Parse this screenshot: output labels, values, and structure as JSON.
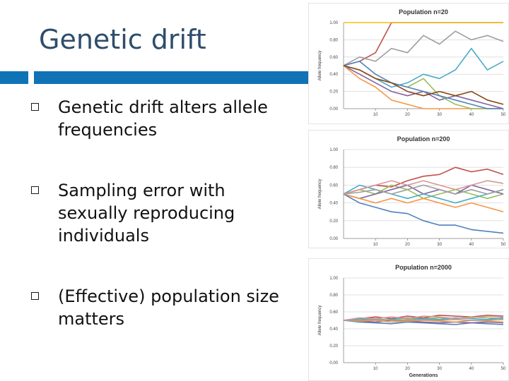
{
  "slide": {
    "title": "Genetic drift",
    "bullets": [
      "Genetic drift alters allele frequencies",
      "Sampling error with sexually reproducing individuals",
      "(Effective) population size matters"
    ]
  },
  "chart_data": [
    {
      "type": "line",
      "title": "Population n=20",
      "ylabel": "Allele frequency",
      "xlabel": "",
      "x_ticks": [
        10,
        20,
        30,
        40,
        50
      ],
      "y_ticks": [
        "0.00",
        "0.20",
        "0.40",
        "0.60",
        "0.80",
        "1.00"
      ],
      "xlim": [
        0,
        50
      ],
      "ylim": [
        0,
        1
      ],
      "x": [
        0,
        5,
        10,
        15,
        20,
        25,
        30,
        35,
        40,
        45,
        50
      ],
      "series": [
        {
          "color": "#c0504d",
          "values": [
            0.5,
            0.55,
            0.65,
            1.0,
            1.0,
            1.0,
            1.0,
            1.0,
            1.0,
            1.0,
            1.0
          ]
        },
        {
          "color": "#f2c314",
          "values": [
            1.0,
            1.0,
            1.0,
            1.0,
            1.0,
            1.0,
            1.0,
            1.0,
            1.0,
            1.0,
            1.0
          ]
        },
        {
          "color": "#9e9e9e",
          "values": [
            0.5,
            0.6,
            0.55,
            0.7,
            0.65,
            0.85,
            0.75,
            0.9,
            0.8,
            0.85,
            0.78
          ]
        },
        {
          "color": "#4aacc6",
          "values": [
            0.5,
            0.45,
            0.35,
            0.25,
            0.3,
            0.4,
            0.35,
            0.45,
            0.7,
            0.45,
            0.55
          ]
        },
        {
          "color": "#8064a2",
          "values": [
            0.5,
            0.4,
            0.3,
            0.2,
            0.15,
            0.2,
            0.1,
            0.15,
            0.1,
            0.05,
            0.0
          ]
        },
        {
          "color": "#f79646",
          "values": [
            0.5,
            0.35,
            0.25,
            0.1,
            0.05,
            0.0,
            0.0,
            0.0,
            0.0,
            0.0,
            0.0
          ]
        },
        {
          "color": "#9bbb59",
          "values": [
            0.5,
            0.45,
            0.35,
            0.3,
            0.25,
            0.35,
            0.15,
            0.05,
            0.0,
            0.0,
            0.0
          ]
        },
        {
          "color": "#4f81bd",
          "values": [
            0.5,
            0.55,
            0.4,
            0.3,
            0.25,
            0.2,
            0.15,
            0.1,
            0.05,
            0.0,
            0.0
          ]
        },
        {
          "color": "#8b4513",
          "values": [
            0.5,
            0.45,
            0.35,
            0.3,
            0.2,
            0.15,
            0.2,
            0.15,
            0.2,
            0.1,
            0.05
          ]
        }
      ]
    },
    {
      "type": "line",
      "title": "Population n=200",
      "ylabel": "Allele frequency",
      "xlabel": "",
      "x_ticks": [
        10,
        20,
        30,
        40,
        50
      ],
      "y_ticks": [
        "0.00",
        "0.20",
        "0.40",
        "0.60",
        "0.80",
        "1.00"
      ],
      "xlim": [
        0,
        50
      ],
      "ylim": [
        0,
        1
      ],
      "x": [
        0,
        5,
        10,
        15,
        20,
        25,
        30,
        35,
        40,
        45,
        50
      ],
      "series": [
        {
          "color": "#c0504d",
          "values": [
            0.5,
            0.55,
            0.6,
            0.58,
            0.65,
            0.7,
            0.72,
            0.8,
            0.75,
            0.78,
            0.72
          ]
        },
        {
          "color": "#4f81bd",
          "values": [
            0.5,
            0.4,
            0.35,
            0.3,
            0.28,
            0.2,
            0.15,
            0.15,
            0.1,
            0.08,
            0.06
          ]
        },
        {
          "color": "#9bbb59",
          "values": [
            0.5,
            0.55,
            0.5,
            0.6,
            0.55,
            0.45,
            0.5,
            0.55,
            0.5,
            0.45,
            0.5
          ]
        },
        {
          "color": "#8064a2",
          "values": [
            0.5,
            0.45,
            0.5,
            0.55,
            0.6,
            0.5,
            0.55,
            0.5,
            0.6,
            0.55,
            0.5
          ]
        },
        {
          "color": "#4aacc6",
          "values": [
            0.5,
            0.6,
            0.55,
            0.5,
            0.45,
            0.5,
            0.45,
            0.4,
            0.45,
            0.5,
            0.55
          ]
        },
        {
          "color": "#f79646",
          "values": [
            0.5,
            0.45,
            0.4,
            0.45,
            0.4,
            0.45,
            0.4,
            0.35,
            0.4,
            0.35,
            0.3
          ]
        },
        {
          "color": "#d99694",
          "values": [
            0.5,
            0.55,
            0.6,
            0.65,
            0.6,
            0.65,
            0.6,
            0.55,
            0.6,
            0.65,
            0.62
          ]
        },
        {
          "color": "#9e9e9e",
          "values": [
            0.5,
            0.52,
            0.55,
            0.5,
            0.55,
            0.6,
            0.55,
            0.5,
            0.55,
            0.5,
            0.55
          ]
        }
      ]
    },
    {
      "type": "line",
      "title": "Population n=2000",
      "ylabel": "Allele frequency",
      "xlabel": "Generations",
      "x_ticks": [
        10,
        20,
        30,
        40,
        50
      ],
      "y_ticks": [
        "0.00",
        "0.20",
        "0.40",
        "0.60",
        "0.80",
        "1.00"
      ],
      "xlim": [
        0,
        50
      ],
      "ylim": [
        0,
        1
      ],
      "x": [
        0,
        5,
        10,
        15,
        20,
        25,
        30,
        35,
        40,
        45,
        50
      ],
      "series": [
        {
          "color": "#c0504d",
          "values": [
            0.5,
            0.52,
            0.54,
            0.52,
            0.55,
            0.53,
            0.56,
            0.55,
            0.54,
            0.56,
            0.55
          ]
        },
        {
          "color": "#4f81bd",
          "values": [
            0.5,
            0.48,
            0.47,
            0.46,
            0.48,
            0.47,
            0.46,
            0.45,
            0.47,
            0.46,
            0.45
          ]
        },
        {
          "color": "#9bbb59",
          "values": [
            0.5,
            0.51,
            0.52,
            0.5,
            0.51,
            0.52,
            0.53,
            0.52,
            0.54,
            0.53,
            0.52
          ]
        },
        {
          "color": "#8064a2",
          "values": [
            0.5,
            0.49,
            0.48,
            0.5,
            0.49,
            0.48,
            0.47,
            0.48,
            0.47,
            0.48,
            0.47
          ]
        },
        {
          "color": "#4aacc6",
          "values": [
            0.5,
            0.52,
            0.5,
            0.51,
            0.53,
            0.52,
            0.51,
            0.53,
            0.52,
            0.51,
            0.53
          ]
        },
        {
          "color": "#f79646",
          "values": [
            0.5,
            0.49,
            0.5,
            0.48,
            0.49,
            0.5,
            0.49,
            0.48,
            0.5,
            0.49,
            0.48
          ]
        },
        {
          "color": "#d99694",
          "values": [
            0.5,
            0.53,
            0.52,
            0.54,
            0.52,
            0.55,
            0.54,
            0.52,
            0.53,
            0.55,
            0.54
          ]
        },
        {
          "color": "#9e9e9e",
          "values": [
            0.5,
            0.5,
            0.51,
            0.5,
            0.5,
            0.51,
            0.5,
            0.51,
            0.5,
            0.5,
            0.51
          ]
        }
      ]
    }
  ]
}
